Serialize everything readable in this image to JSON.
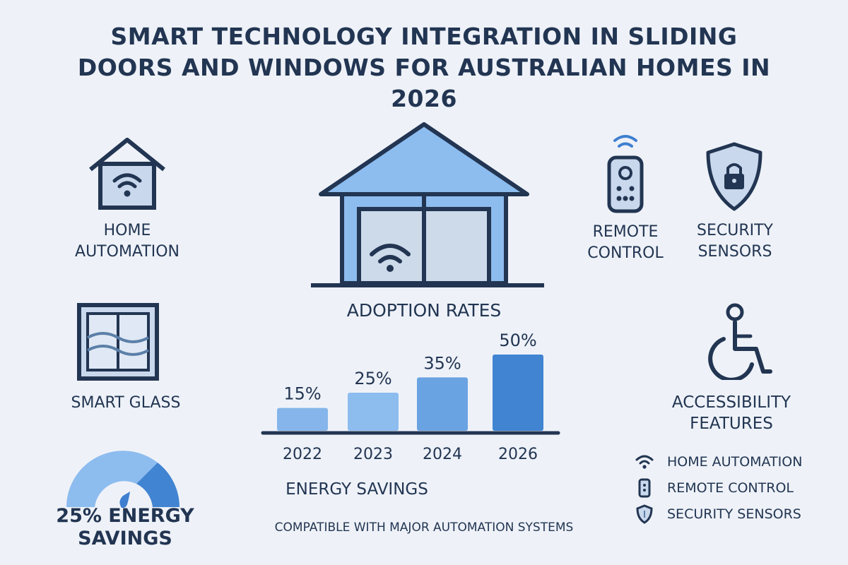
{
  "title": "SMART TECHNOLOGY INTEGRATION IN SLIDING DOORS AND WINDOWS FOR AUSTRALIAN HOMES IN 2026",
  "features": {
    "home_automation": "HOME AUTOMATION",
    "smart_glass": "SMART GLASS",
    "remote_control": "REMOTE CONTROL",
    "security_sensors": "SECURITY SENSORS",
    "accessibility": "ACCESSIBILITY FEATURES"
  },
  "energy": {
    "gauge_value_percent": 25,
    "label": "25% ENERGY SAVINGS",
    "heading": "ENERGY SAVINGS",
    "compatibility": "COMPATIBLE WITH MAJOR AUTOMATION SYSTEMS"
  },
  "legend": [
    {
      "icon": "wifi-icon",
      "label": "HOME AUTOMATION"
    },
    {
      "icon": "remote-icon",
      "label": "REMOTE CONTROL"
    },
    {
      "icon": "shield-icon",
      "label": "SECURITY SENSORS"
    }
  ],
  "colors": {
    "text": "#223552",
    "bars": [
      "#85b5ea",
      "#8dbcef",
      "#6aa3e2",
      "#4184d2"
    ],
    "house": "#8dbcef",
    "accent": "#3f7fd0"
  },
  "chart_data": {
    "type": "bar",
    "title": "ADOPTION RATES",
    "categories": [
      "2022",
      "2023",
      "2024",
      "2026"
    ],
    "values": [
      15,
      25,
      35,
      50
    ],
    "data_labels": [
      "15%",
      "25%",
      "35%",
      "50%"
    ],
    "ylim": [
      0,
      50
    ],
    "grid": false
  }
}
